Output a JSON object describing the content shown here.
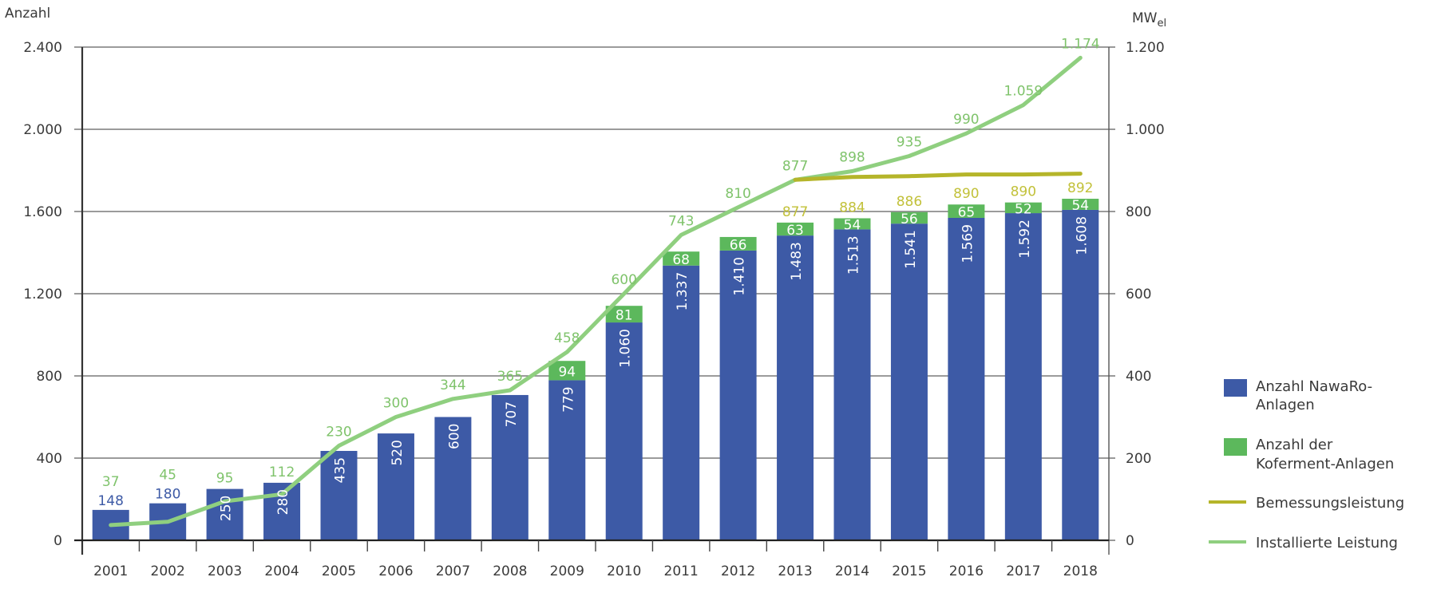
{
  "chart_data": {
    "type": "bar",
    "title": "",
    "xlabel": "",
    "ylabel": "Anzahl",
    "y2label": "MWel",
    "ylim": [
      0,
      2400
    ],
    "y2lim": [
      0,
      1200
    ],
    "yticks": [
      "0",
      "400",
      "800",
      "1.200",
      "1.600",
      "2.000",
      "2.400"
    ],
    "y2ticks": [
      "0",
      "200",
      "400",
      "600",
      "800",
      "1.000",
      "1.200"
    ],
    "grid": true,
    "legend_position": "right",
    "categories": [
      "2001",
      "2002",
      "2003",
      "2004",
      "2005",
      "2006",
      "2007",
      "2008",
      "2009",
      "2010",
      "2011",
      "2012",
      "2013",
      "2014",
      "2015",
      "2016",
      "2017",
      "2018"
    ],
    "series": [
      {
        "name": "Anzahl NawaRo-Anlagen",
        "type": "bar",
        "axis": "left",
        "color": "#3d5aa6",
        "values": [
          148,
          180,
          250,
          280,
          435,
          520,
          600,
          707,
          779,
          1060,
          1337,
          1410,
          1483,
          1513,
          1541,
          1569,
          1592,
          1608
        ],
        "labels": [
          "148",
          "180",
          "250",
          "280",
          "435",
          "520",
          "600",
          "707",
          "779",
          "1.060",
          "1.337",
          "1.410",
          "1.483",
          "1.513",
          "1.541",
          "1.569",
          "1.592",
          "1.608"
        ]
      },
      {
        "name": "Anzahl der Koferment-Anlagen",
        "type": "bar-stacked",
        "axis": "left",
        "color": "#5cb85c",
        "values": [
          null,
          null,
          null,
          null,
          null,
          null,
          null,
          null,
          94,
          81,
          68,
          66,
          63,
          54,
          56,
          65,
          52,
          54
        ],
        "labels": [
          null,
          null,
          null,
          null,
          null,
          null,
          null,
          null,
          "94",
          "81",
          "68",
          "66",
          "63",
          "54",
          "56",
          "65",
          "52",
          "54"
        ]
      },
      {
        "name": "Bemessungsleistung",
        "type": "line",
        "axis": "right",
        "color": "#b5b52a",
        "values": [
          null,
          null,
          null,
          null,
          null,
          null,
          null,
          null,
          null,
          null,
          null,
          null,
          877,
          884,
          886,
          890,
          890,
          892
        ],
        "labels": [
          null,
          null,
          null,
          null,
          null,
          null,
          null,
          null,
          null,
          null,
          null,
          null,
          "877",
          "884",
          "886",
          "890",
          "890",
          "892"
        ]
      },
      {
        "name": "Installierte Leistung",
        "type": "line",
        "axis": "right",
        "color": "#8fcf7f",
        "values": [
          37,
          45,
          95,
          112,
          230,
          300,
          344,
          365,
          458,
          600,
          743,
          810,
          877,
          898,
          935,
          990,
          1059,
          1174
        ],
        "labels": [
          "37",
          "45",
          "95",
          "112",
          "230",
          "300",
          "344",
          "365",
          "458",
          "600",
          "743",
          "810",
          "877",
          "898",
          "935",
          "990",
          "1.059",
          "1.174"
        ]
      }
    ]
  },
  "legend": {
    "items": [
      {
        "label_line1": "Anzahl NawaRo-",
        "label_line2": "Anlagen",
        "kind": "swatch",
        "color": "#3d5aa6"
      },
      {
        "label_line1": "Anzahl der",
        "label_line2": "Koferment-Anlagen",
        "kind": "swatch",
        "color": "#5cb85c"
      },
      {
        "label_line1": "Bemessungsleistung",
        "label_line2": "",
        "kind": "line",
        "color": "#b5b52a"
      },
      {
        "label_line1": "Installierte Leistung",
        "label_line2": "",
        "kind": "line",
        "color": "#8fcf7f"
      }
    ]
  },
  "axes": {
    "left_title": "Anzahl",
    "right_title_main": "MW",
    "right_title_sub": "el"
  }
}
